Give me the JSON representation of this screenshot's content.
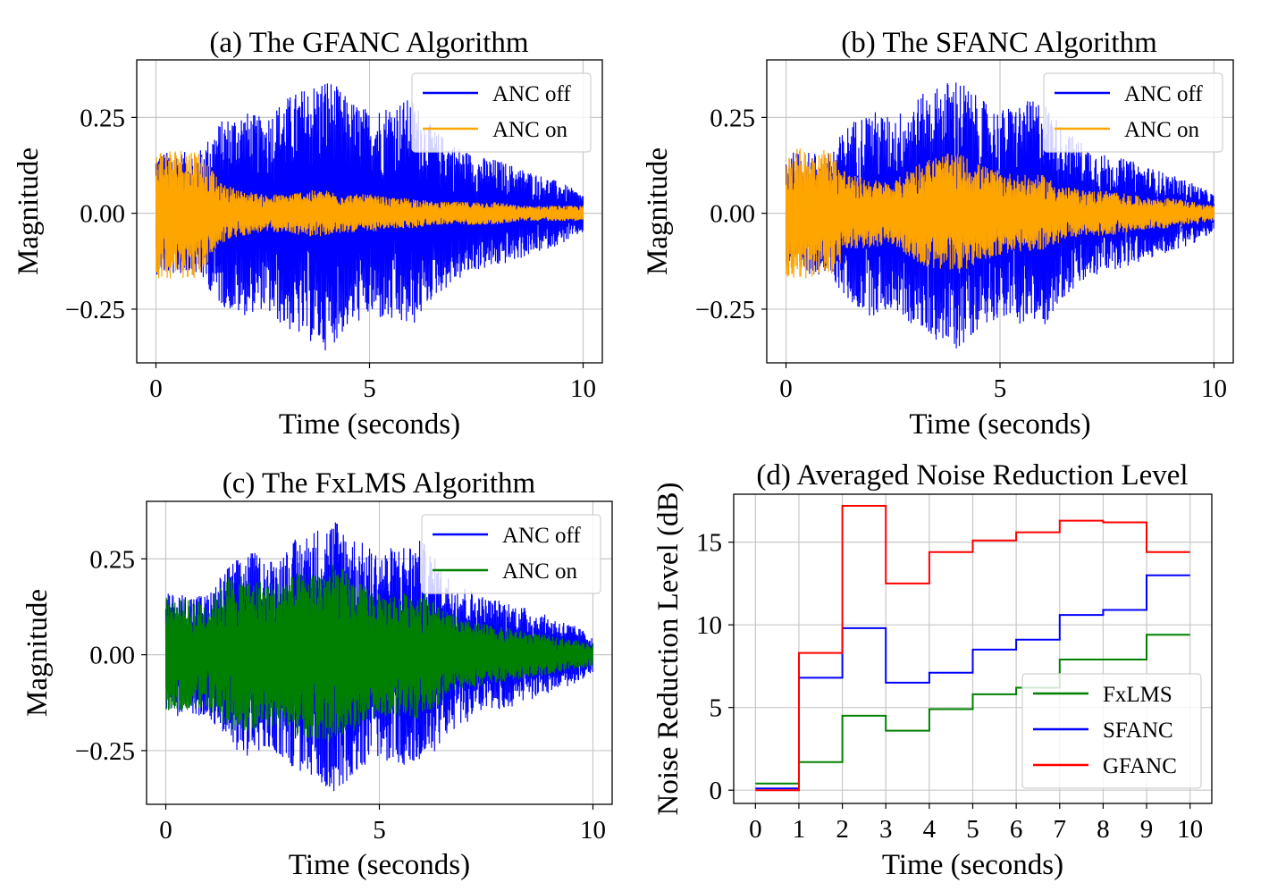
{
  "chart_data": [
    {
      "id": "a",
      "type": "line",
      "title": "(a) The GFANC Algorithm",
      "xlabel": "Time (seconds)",
      "ylabel": "Magnitude",
      "xlim": [
        -0.45,
        10.45
      ],
      "ylim": [
        -0.39,
        0.4
      ],
      "xticks": [
        0,
        5,
        10
      ],
      "xtick_labels": [
        "0",
        "5",
        "10"
      ],
      "yticks": [
        -0.25,
        0.0,
        0.25
      ],
      "ytick_labels": [
        "−0.25",
        "0.00",
        "0.25"
      ],
      "grid": true,
      "legend_position": "top-right",
      "series": [
        {
          "name": "ANC off",
          "color": "#0000ff",
          "envelope_time": [
            0,
            1,
            1.5,
            2,
            2.5,
            3,
            3.5,
            4,
            4.5,
            5,
            5.5,
            6,
            6.5,
            7,
            7.5,
            8,
            8.5,
            9,
            9.5,
            10
          ],
          "envelope_peak": [
            0.16,
            0.16,
            0.24,
            0.27,
            0.25,
            0.3,
            0.33,
            0.36,
            0.3,
            0.27,
            0.29,
            0.3,
            0.22,
            0.18,
            0.15,
            0.14,
            0.12,
            0.1,
            0.08,
            0.05
          ]
        },
        {
          "name": "ANC on",
          "color": "#ffa500",
          "envelope_time": [
            0,
            1,
            1.5,
            2,
            2.5,
            3,
            3.5,
            4,
            4.5,
            5,
            5.5,
            6,
            6.5,
            7,
            7.5,
            8,
            8.5,
            9,
            9.5,
            10
          ],
          "envelope_peak": [
            0.17,
            0.17,
            0.08,
            0.06,
            0.05,
            0.05,
            0.06,
            0.06,
            0.05,
            0.05,
            0.04,
            0.04,
            0.03,
            0.03,
            0.03,
            0.03,
            0.02,
            0.02,
            0.02,
            0.02
          ]
        }
      ]
    },
    {
      "id": "b",
      "type": "line",
      "title": "(b) The SFANC Algorithm",
      "xlabel": "Time (seconds)",
      "ylabel": "Magnitude",
      "xlim": [
        -0.45,
        10.45
      ],
      "ylim": [
        -0.39,
        0.4
      ],
      "xticks": [
        0,
        5,
        10
      ],
      "xtick_labels": [
        "0",
        "5",
        "10"
      ],
      "yticks": [
        -0.25,
        0.0,
        0.25
      ],
      "ytick_labels": [
        "−0.25",
        "0.00",
        "0.25"
      ],
      "grid": true,
      "legend_position": "top-right",
      "series": [
        {
          "name": "ANC off",
          "color": "#0000ff",
          "envelope_time": [
            0,
            1,
            1.5,
            2,
            2.5,
            3,
            3.5,
            4,
            4.5,
            5,
            5.5,
            6,
            6.5,
            7,
            7.5,
            8,
            8.5,
            9,
            9.5,
            10
          ],
          "envelope_peak": [
            0.16,
            0.16,
            0.24,
            0.27,
            0.25,
            0.3,
            0.33,
            0.36,
            0.3,
            0.27,
            0.29,
            0.3,
            0.22,
            0.18,
            0.15,
            0.14,
            0.12,
            0.1,
            0.08,
            0.05
          ]
        },
        {
          "name": "ANC on",
          "color": "#ffa500",
          "envelope_time": [
            0,
            1,
            1.5,
            2,
            2.5,
            3,
            3.5,
            4,
            4.5,
            5,
            5.5,
            6,
            6.5,
            7,
            7.5,
            8,
            8.5,
            9,
            9.5,
            10
          ],
          "envelope_peak": [
            0.17,
            0.17,
            0.1,
            0.09,
            0.08,
            0.13,
            0.15,
            0.16,
            0.13,
            0.11,
            0.1,
            0.1,
            0.07,
            0.06,
            0.06,
            0.05,
            0.04,
            0.04,
            0.03,
            0.02
          ]
        }
      ]
    },
    {
      "id": "c",
      "type": "line",
      "title": "(c) The FxLMS Algorithm",
      "xlabel": "Time (seconds)",
      "ylabel": "Magnitude",
      "xlim": [
        -0.45,
        10.45
      ],
      "ylim": [
        -0.39,
        0.4
      ],
      "xticks": [
        0,
        5,
        10
      ],
      "xtick_labels": [
        "0",
        "5",
        "10"
      ],
      "yticks": [
        -0.25,
        0.0,
        0.25
      ],
      "ytick_labels": [
        "−0.25",
        "0.00",
        "0.25"
      ],
      "grid": true,
      "legend_position": "top-right",
      "series": [
        {
          "name": "ANC off",
          "color": "#0000ff",
          "envelope_time": [
            0,
            1,
            1.5,
            2,
            2.5,
            3,
            3.5,
            4,
            4.5,
            5,
            5.5,
            6,
            6.5,
            7,
            7.5,
            8,
            8.5,
            9,
            9.5,
            10
          ],
          "envelope_peak": [
            0.16,
            0.16,
            0.24,
            0.27,
            0.25,
            0.3,
            0.33,
            0.36,
            0.3,
            0.27,
            0.29,
            0.3,
            0.22,
            0.18,
            0.15,
            0.14,
            0.12,
            0.1,
            0.08,
            0.05
          ]
        },
        {
          "name": "ANC on",
          "color": "#008000",
          "envelope_time": [
            0,
            1,
            1.5,
            2,
            2.5,
            3,
            3.5,
            4,
            4.5,
            5,
            5.5,
            6,
            6.5,
            7,
            7.5,
            8,
            8.5,
            9,
            9.5,
            10
          ],
          "envelope_peak": [
            0.15,
            0.14,
            0.21,
            0.2,
            0.19,
            0.21,
            0.22,
            0.24,
            0.19,
            0.16,
            0.16,
            0.17,
            0.12,
            0.09,
            0.08,
            0.07,
            0.06,
            0.05,
            0.04,
            0.03
          ]
        }
      ]
    },
    {
      "id": "d",
      "type": "line",
      "step": "post",
      "title": "(d) Averaged Noise Reduction Level",
      "xlabel": "Time (seconds)",
      "ylabel": "Noise Reduction Level (dB)",
      "xlim": [
        -0.5,
        10.5
      ],
      "ylim": [
        -0.8,
        17.9
      ],
      "xticks": [
        0,
        1,
        2,
        3,
        4,
        5,
        6,
        7,
        8,
        9,
        10
      ],
      "xtick_labels": [
        "0",
        "1",
        "2",
        "3",
        "4",
        "5",
        "6",
        "7",
        "8",
        "9",
        "10"
      ],
      "yticks": [
        0,
        5,
        10,
        15
      ],
      "ytick_labels": [
        "0",
        "5",
        "10",
        "15"
      ],
      "grid": true,
      "legend_position": "bottom-right",
      "x": [
        0,
        1,
        2,
        3,
        4,
        5,
        6,
        7,
        8,
        9,
        10
      ],
      "series": [
        {
          "name": "FxLMS",
          "color": "#008000",
          "values": [
            0.4,
            1.7,
            4.5,
            3.6,
            4.9,
            5.8,
            6.2,
            7.9,
            7.9,
            9.4,
            9.4
          ]
        },
        {
          "name": "SFANC",
          "color": "#0000ff",
          "values": [
            0.1,
            6.8,
            9.8,
            6.5,
            7.1,
            8.5,
            9.1,
            10.6,
            10.9,
            13.0,
            13.0
          ]
        },
        {
          "name": "GFANC",
          "color": "#ff0000",
          "values": [
            0.0,
            8.3,
            17.2,
            12.5,
            14.4,
            15.1,
            15.6,
            16.3,
            16.2,
            14.4,
            14.4
          ]
        }
      ]
    }
  ]
}
